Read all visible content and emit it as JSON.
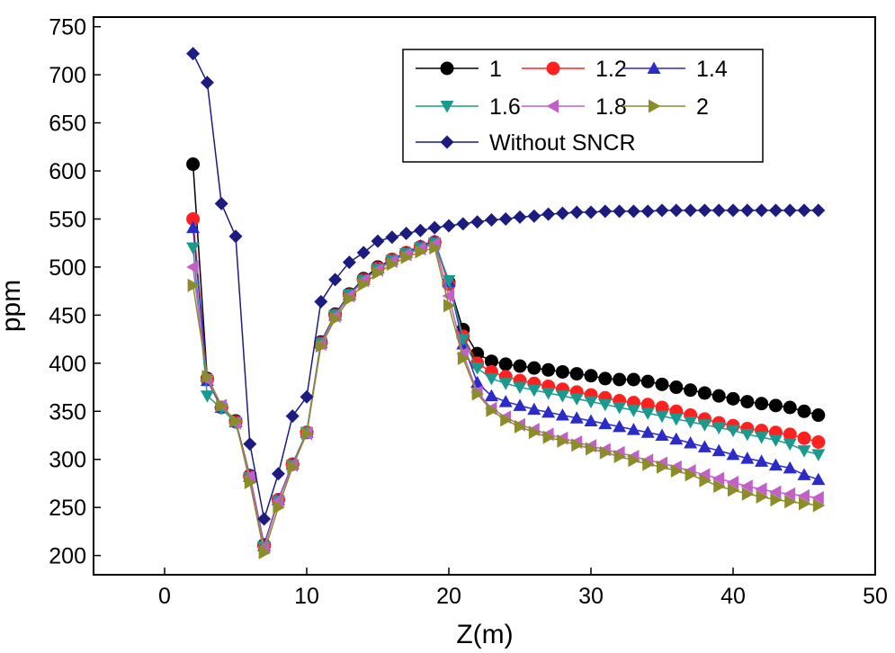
{
  "chart_data": {
    "type": "line",
    "title": "",
    "xlabel": "Z(m)",
    "ylabel": "ppm",
    "xlim": [
      -5,
      50
    ],
    "ylim": [
      180,
      760
    ],
    "xticks": [
      0,
      10,
      20,
      30,
      40,
      50
    ],
    "yticks": [
      200,
      250,
      300,
      350,
      400,
      450,
      500,
      550,
      600,
      650,
      700,
      750
    ],
    "grid": false,
    "legend_position": "top-right",
    "x": [
      2,
      3,
      4,
      5,
      6,
      7,
      8,
      9,
      10,
      11,
      12,
      13,
      14,
      15,
      16,
      17,
      18,
      19,
      20,
      21,
      22,
      23,
      24,
      25,
      26,
      27,
      28,
      29,
      30,
      31,
      32,
      33,
      34,
      35,
      36,
      37,
      38,
      39,
      40,
      41,
      42,
      43,
      44,
      45,
      46
    ],
    "series": [
      {
        "name": "1",
        "color": "#000000",
        "marker": "circle",
        "values": [
          607,
          384,
          354,
          340,
          283,
          211,
          258,
          295,
          328,
          422,
          451,
          472,
          488,
          500,
          508,
          515,
          521,
          526,
          484,
          435,
          410,
          402,
          399,
          397,
          395,
          393,
          391,
          389,
          387,
          384,
          383,
          383,
          381,
          378,
          375,
          372,
          369,
          366,
          363,
          360,
          358,
          356,
          354,
          350,
          346
        ]
      },
      {
        "name": "1.2",
        "color": "#ff2020",
        "marker": "circle",
        "values": [
          550,
          383,
          354,
          339,
          282,
          210,
          258,
          295,
          328,
          421,
          450,
          471,
          487,
          499,
          508,
          515,
          521,
          526,
          482,
          428,
          400,
          391,
          386,
          382,
          379,
          376,
          373,
          370,
          367,
          364,
          361,
          359,
          357,
          354,
          350,
          346,
          342,
          338,
          335,
          332,
          330,
          328,
          326,
          322,
          318
        ]
      },
      {
        "name": "1.4",
        "color": "#2b2bc8",
        "marker": "triangle-up",
        "values": [
          541,
          382,
          354,
          339,
          282,
          210,
          258,
          295,
          328,
          421,
          450,
          471,
          487,
          499,
          508,
          515,
          522,
          527,
          485,
          420,
          380,
          366,
          360,
          356,
          352,
          349,
          346,
          343,
          340,
          337,
          334,
          331,
          328,
          325,
          321,
          317,
          313,
          309,
          305,
          301,
          298,
          294,
          291,
          284,
          279
        ]
      },
      {
        "name": "1.6",
        "color": "#1a9a8e",
        "marker": "triangle-down",
        "values": [
          520,
          366,
          353,
          338,
          281,
          209,
          257,
          294,
          328,
          421,
          450,
          471,
          486,
          498,
          507,
          514,
          520,
          525,
          486,
          425,
          395,
          384,
          379,
          375,
          372,
          369,
          366,
          363,
          360,
          357,
          354,
          351,
          348,
          345,
          342,
          339,
          336,
          333,
          330,
          326,
          323,
          320,
          316,
          309,
          305
        ]
      },
      {
        "name": "1.8",
        "color": "#c060c8",
        "marker": "triangle-left",
        "values": [
          500,
          383,
          356,
          338,
          282,
          208,
          257,
          294,
          327,
          420,
          449,
          470,
          486,
          497,
          506,
          513,
          519,
          524,
          470,
          410,
          370,
          353,
          344,
          336,
          331,
          326,
          322,
          318,
          314,
          310,
          307,
          303,
          299,
          296,
          292,
          288,
          284,
          280,
          276,
          272,
          269,
          266,
          264,
          262,
          260
        ]
      },
      {
        "name": "2",
        "color": "#8c8c2a",
        "marker": "triangle-right",
        "values": [
          481,
          386,
          356,
          340,
          276,
          203,
          250,
          292,
          327,
          418,
          446,
          467,
          482,
          494,
          503,
          510,
          516,
          520,
          460,
          405,
          368,
          351,
          341,
          334,
          328,
          323,
          319,
          315,
          311,
          307,
          303,
          299,
          295,
          292,
          288,
          284,
          278,
          272,
          268,
          264,
          261,
          258,
          256,
          254,
          252
        ]
      },
      {
        "name": "Without SNCR",
        "color": "#1c1c80",
        "marker": "diamond",
        "values": [
          722,
          692,
          566,
          532,
          316,
          238,
          285,
          345,
          365,
          464,
          487,
          505,
          515,
          527,
          531,
          535,
          538,
          541,
          543,
          545,
          547,
          549,
          550,
          552,
          553,
          555,
          556,
          557,
          557,
          558,
          558,
          558,
          558,
          559,
          559,
          559,
          559,
          559,
          559,
          559,
          559,
          559,
          559,
          559,
          559
        ]
      }
    ]
  }
}
